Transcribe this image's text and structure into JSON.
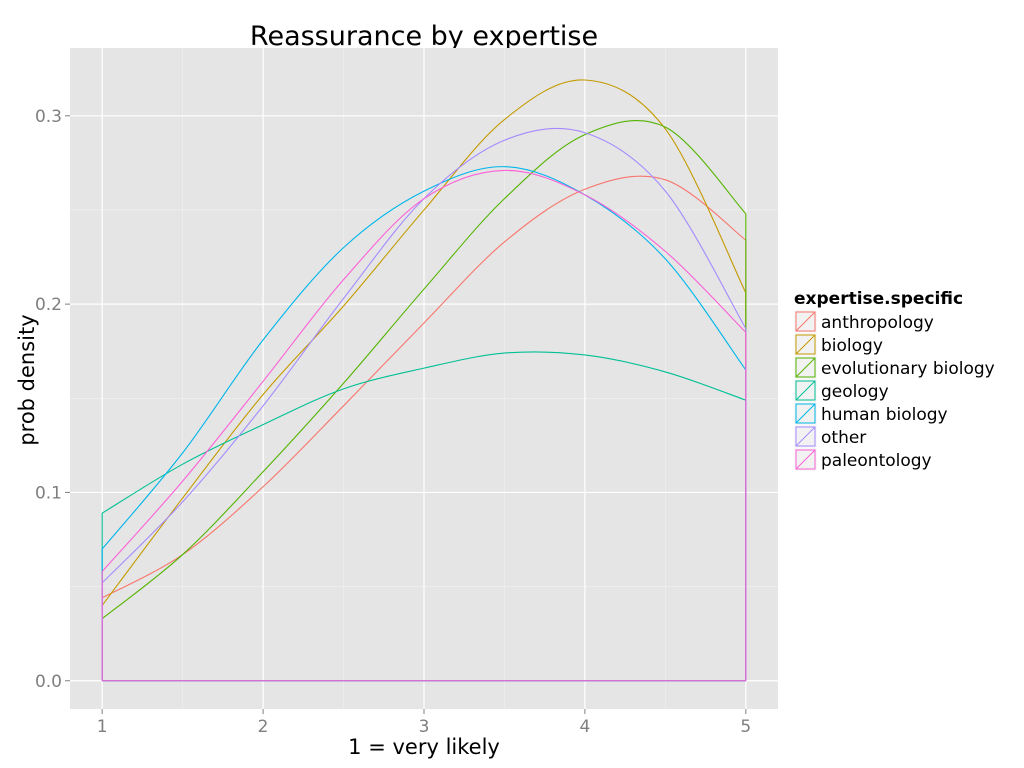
{
  "chart_data": {
    "type": "line",
    "title": "Reassurance  by expertise",
    "xlabel": "1 = very likely",
    "ylabel": "prob density",
    "xlim": [
      0.8,
      5.2
    ],
    "ylim": [
      -0.015,
      0.336
    ],
    "x_ticks": [
      1,
      2,
      3,
      4,
      5
    ],
    "y_ticks": [
      0.0,
      0.1,
      0.2,
      0.3
    ],
    "y_tick_labels": [
      "0.0",
      "0.1",
      "0.2",
      "0.3"
    ],
    "grid": true,
    "legend_title": "expertise.specific",
    "legend_position": "right",
    "x": [
      1.0,
      1.5,
      2.0,
      2.5,
      3.0,
      3.5,
      4.0,
      4.5,
      5.0
    ],
    "series": [
      {
        "name": "anthropology",
        "color": "#F8766D",
        "values": [
          0.044,
          0.067,
          0.103,
          0.146,
          0.19,
          0.233,
          0.261,
          0.266,
          0.234
        ]
      },
      {
        "name": "biology",
        "color": "#C49A00",
        "values": [
          0.04,
          0.097,
          0.152,
          0.199,
          0.25,
          0.298,
          0.319,
          0.293,
          0.206
        ]
      },
      {
        "name": "evolutionary biology",
        "color": "#53B400",
        "values": [
          0.033,
          0.067,
          0.111,
          0.158,
          0.208,
          0.256,
          0.29,
          0.294,
          0.248
        ]
      },
      {
        "name": "geology",
        "color": "#00C094",
        "values": [
          0.089,
          0.115,
          0.136,
          0.155,
          0.166,
          0.174,
          0.173,
          0.164,
          0.149
        ]
      },
      {
        "name": "human biology",
        "color": "#00B6EB",
        "values": [
          0.07,
          0.121,
          0.181,
          0.23,
          0.26,
          0.273,
          0.258,
          0.224,
          0.165
        ]
      },
      {
        "name": "other",
        "color": "#A58AFF",
        "values": [
          0.052,
          0.095,
          0.146,
          0.203,
          0.256,
          0.287,
          0.291,
          0.26,
          0.187
        ]
      },
      {
        "name": "paleontology",
        "color": "#FB61D7",
        "values": [
          0.058,
          0.106,
          0.159,
          0.213,
          0.256,
          0.271,
          0.258,
          0.228,
          0.185
        ]
      }
    ]
  }
}
